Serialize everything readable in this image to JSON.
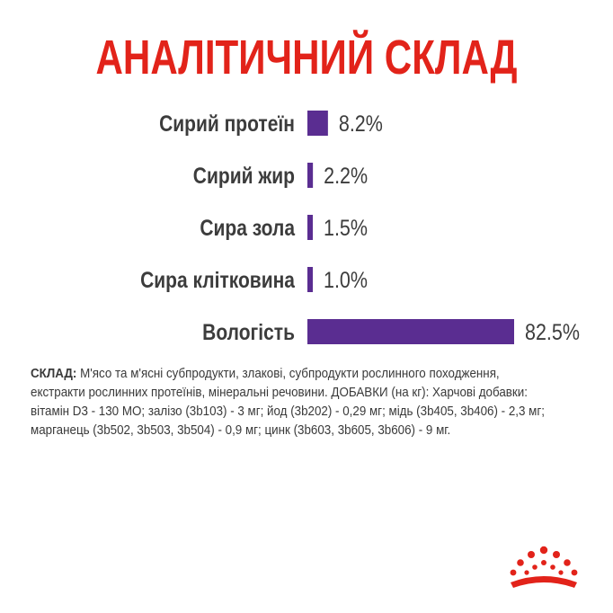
{
  "header": {
    "title": "АНАЛІТИЧНИЙ СКЛАД"
  },
  "chart_data": {
    "type": "bar",
    "orientation": "horizontal",
    "categories": [
      "Сирий протеїн",
      "Сирий жир",
      "Сира зола",
      "Сира клітковина",
      "Вологість"
    ],
    "values": [
      8.2,
      2.2,
      1.5,
      1.0,
      82.5
    ],
    "value_labels": [
      "8.2%",
      "2.2%",
      "1.5%",
      "1.0%",
      "82.5%"
    ],
    "xlim": [
      0,
      82.5
    ],
    "grid": false,
    "bar_color": "#5a2d91",
    "title": "",
    "xlabel": "",
    "ylabel": ""
  },
  "composition": {
    "label": "СКЛАД:",
    "text": " М'ясо та м'ясні субпродукти, злакові, субпродукти рослинного походження, екстракти рослинних протеїнів, мінеральні речовини. ДОБАВКИ (на кг): Харчові добавки: вітамін D3 - 130 МО; залізо (3b103) - 3 мг; йод (3b202) - 0,29 мг; мідь (3b405, 3b406) - 2,3 мг; марганець (3b502, 3b503, 3b504) - 0,9 мг; цинк (3b603, 3b605, 3b606) - 9 мг."
  },
  "brand": {
    "logo_icon": "crown-logo-icon",
    "logo_color": "#e2231a"
  }
}
